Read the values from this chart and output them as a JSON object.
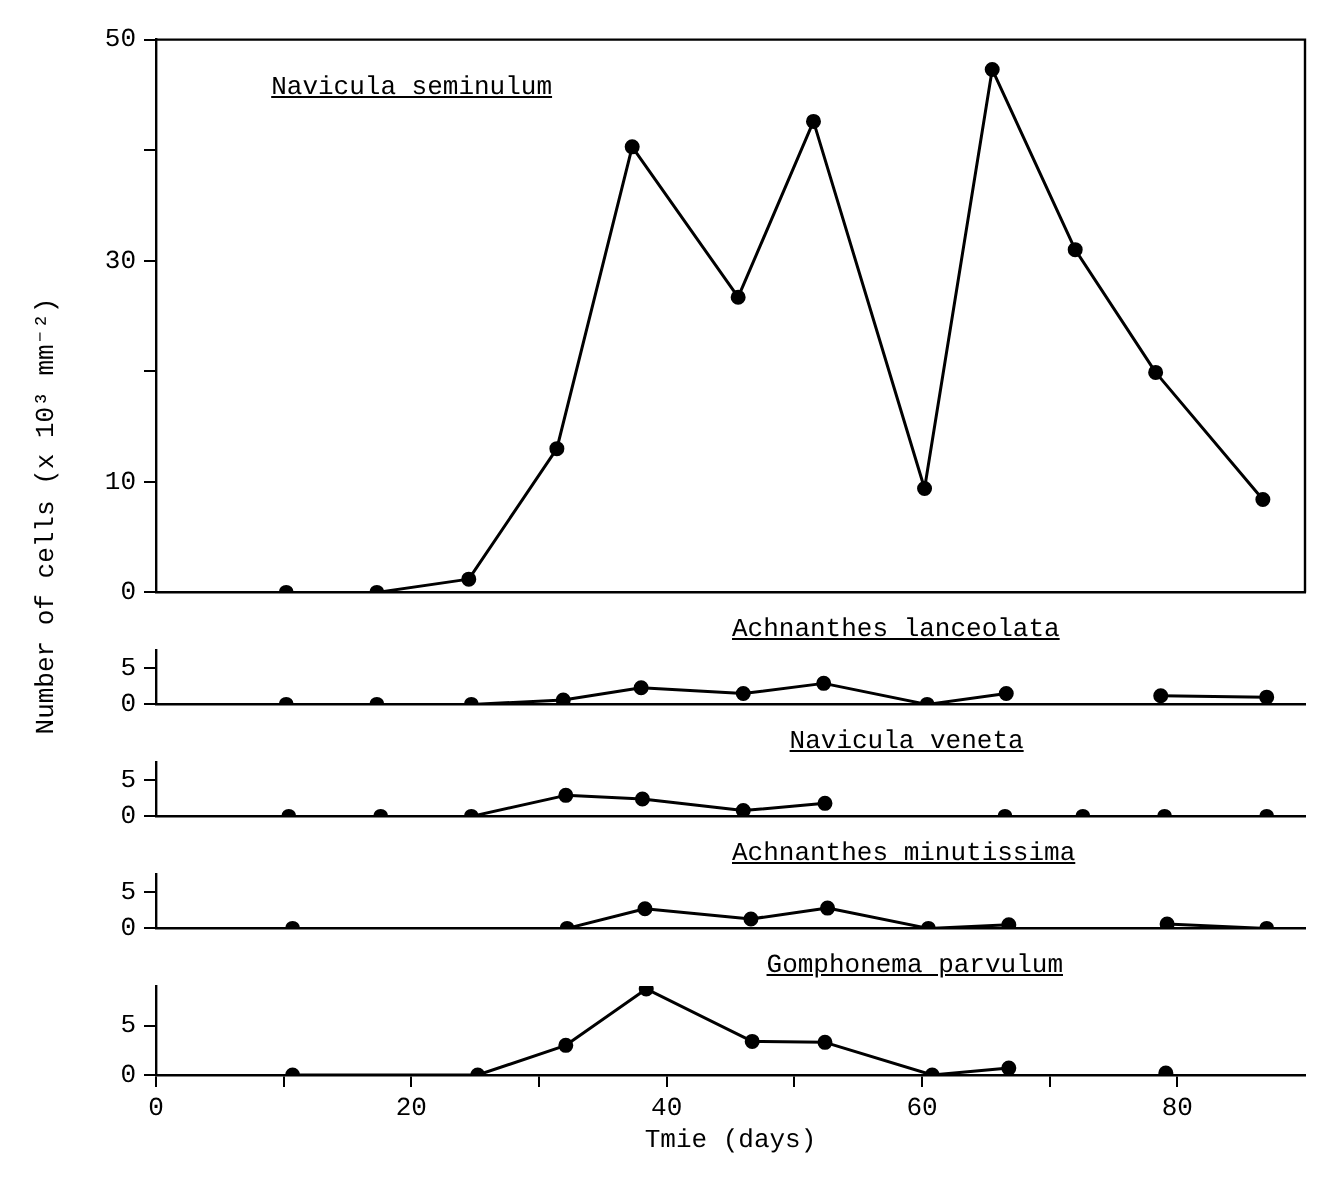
{
  "chart_data": [
    {
      "type": "line",
      "title": "Navicula seminulum",
      "ylabel": "Number of cells (x 10³ mm⁻²)",
      "color": "#000000",
      "marker": "circle",
      "line_style": "solid",
      "tick_labels": "y",
      "x": [
        10.2,
        17.3,
        24.5,
        31.4,
        37.3,
        45.6,
        51.5,
        60.2,
        65.5,
        72.0,
        78.3,
        86.7
      ],
      "values": [
        0,
        0,
        1.2,
        13.0,
        40.3,
        26.7,
        42.6,
        9.4,
        47.3,
        31.0,
        19.9,
        8.4
      ],
      "xlim": [
        0,
        90
      ],
      "ylim": [
        0,
        50
      ],
      "yticks": [
        0,
        10,
        {
          "value": 20,
          "label": null
        },
        30,
        {
          "value": 40,
          "label": null
        },
        50
      ]
    },
    {
      "type": "line",
      "title": "Achnanthes lanceolata",
      "color": "#000000",
      "marker": "circle",
      "line_style": "solid",
      "tick_labels": "y",
      "x": [
        10.2,
        17.3,
        24.7,
        31.9,
        38.0,
        46.0,
        52.3,
        60.4,
        66.6,
        72.5,
        78.7,
        87.0
      ],
      "values": [
        0,
        0,
        0,
        0.6,
        2.3,
        1.5,
        2.9,
        0,
        1.5,
        null,
        1.2,
        1.0
      ],
      "xlim": [
        0,
        90
      ],
      "ylim": [
        0,
        7.5
      ],
      "yticks": [
        0,
        5
      ]
    },
    {
      "type": "line",
      "title": "Navicula veneta",
      "color": "#000000",
      "marker": "circle",
      "line_style": "solid",
      "tick_labels": "y",
      "x": [
        10.4,
        17.6,
        24.7,
        32.1,
        38.1,
        46.0,
        52.4,
        59.0,
        66.5,
        72.6,
        79.0,
        87.0
      ],
      "values": [
        0,
        0,
        0,
        2.9,
        2.4,
        0.8,
        1.8,
        null,
        0,
        0,
        0,
        0
      ],
      "xlim": [
        0,
        90
      ],
      "ylim": [
        0,
        7.5
      ],
      "yticks": [
        0,
        5
      ]
    },
    {
      "type": "line",
      "title": "Achnanthes minutissima",
      "color": "#000000",
      "marker": "circle",
      "line_style": "solid",
      "tick_labels": "y",
      "x": [
        10.7,
        32.2,
        38.3,
        46.6,
        52.6,
        60.5,
        66.8,
        73.0,
        79.2,
        87.0
      ],
      "values": [
        0,
        0,
        2.7,
        1.3,
        2.8,
        0,
        0.5,
        null,
        0.6,
        0
      ],
      "xlim": [
        0,
        90
      ],
      "ylim": [
        0,
        7.5
      ],
      "yticks": [
        0,
        5
      ]
    },
    {
      "type": "line",
      "title": "Gomphonema parvulum",
      "xlabel": "Tmie (days)",
      "color": "#000000",
      "marker": "circle",
      "line_style": "solid",
      "x": [
        10.7,
        25.2,
        32.1,
        38.4,
        46.7,
        52.4,
        60.8,
        66.8,
        73.0,
        79.1
      ],
      "values": [
        0,
        0,
        3.0,
        8.7,
        3.4,
        3.3,
        0,
        0.7,
        null,
        0.2
      ],
      "xlim": [
        0,
        90
      ],
      "ylim": [
        0,
        9
      ],
      "yticks": [
        0,
        5
      ],
      "xticks": [
        0,
        {
          "value": 10,
          "label": null
        },
        20,
        {
          "value": 30,
          "label": null
        },
        40,
        {
          "value": 50,
          "label": null
        },
        60,
        {
          "value": 70,
          "label": null
        },
        80
      ]
    }
  ]
}
